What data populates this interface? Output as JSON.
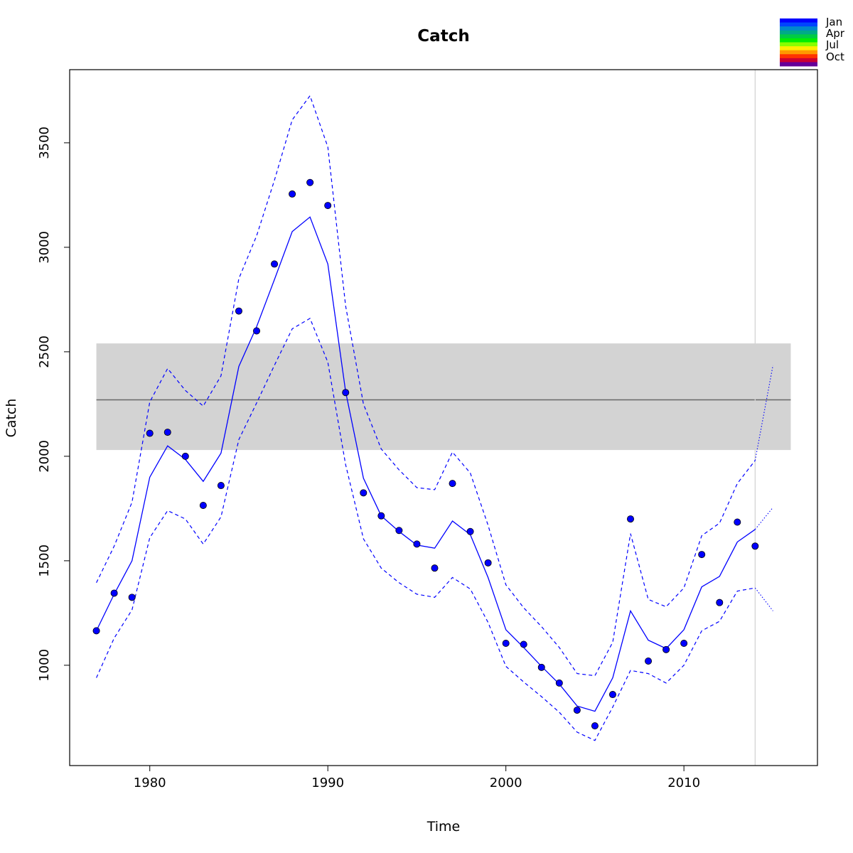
{
  "chart_data": {
    "type": "line",
    "title": "Catch",
    "xlabel": "Time",
    "ylabel": "Catch",
    "xlim": [
      1975.5,
      2017.5
    ],
    "ylim": [
      520,
      3850
    ],
    "x_ticks": [
      1980,
      1990,
      2000,
      2010
    ],
    "y_ticks": [
      1000,
      1500,
      2000,
      2500,
      3000,
      3500
    ],
    "grid": false,
    "legend_position": "top-right",
    "legend": {
      "labels": [
        "Jan",
        "Apr",
        "Jul",
        "Oct"
      ],
      "colors": [
        "#0000ff",
        "#0044ff",
        "#0088cc",
        "#00aa88",
        "#00cc44",
        "#00ee00",
        "#88ff00",
        "#ffee00",
        "#ff9900",
        "#ff3300",
        "#cc0033",
        "#660099"
      ]
    },
    "colors": {
      "fit": "#0000ff",
      "points": "#0000ff",
      "band": "#d3d3d3",
      "mean_line": "#666666",
      "vertical_marker": "#d3d3d3"
    },
    "reference_band": {
      "x_from": 1977,
      "x_to": 2016,
      "lower": 2030,
      "upper": 2540,
      "mean": 2270
    },
    "vertical_marker_x": 2014,
    "observed": {
      "x": [
        1977,
        1978,
        1979,
        1980,
        1981,
        1982,
        1983,
        1984,
        1985,
        1986,
        1987,
        1988,
        1989,
        1990,
        1991,
        1992,
        1993,
        1994,
        1995,
        1996,
        1997,
        1998,
        1999,
        2000,
        2001,
        2002,
        2003,
        2004,
        2005,
        2006,
        2007,
        2008,
        2009,
        2010,
        2011,
        2012,
        2013,
        2014
      ],
      "y": [
        1165,
        1345,
        1325,
        2110,
        2115,
        2000,
        1765,
        1860,
        2695,
        2600,
        2920,
        3255,
        3310,
        3200,
        2305,
        1825,
        1715,
        1645,
        1580,
        1465,
        1870,
        1640,
        1490,
        1105,
        1100,
        990,
        915,
        785,
        710,
        860,
        1700,
        1020,
        1075,
        1105,
        1530,
        1300,
        1685,
        1570
      ]
    },
    "fitted": {
      "x": [
        1977,
        1978,
        1979,
        1980,
        1981,
        1982,
        1983,
        1984,
        1985,
        1986,
        1987,
        1988,
        1989,
        1990,
        1991,
        1992,
        1993,
        1994,
        1995,
        1996,
        1997,
        1998,
        1999,
        2000,
        2001,
        2002,
        2003,
        2004,
        2005,
        2006,
        2007,
        2008,
        2009,
        2010,
        2011,
        2012,
        2013,
        2014
      ],
      "y": [
        1165,
        1340,
        1500,
        1900,
        2050,
        1985,
        1880,
        2015,
        2430,
        2620,
        2845,
        3075,
        3145,
        2920,
        2310,
        1895,
        1715,
        1640,
        1575,
        1560,
        1690,
        1625,
        1420,
        1170,
        1085,
        995,
        910,
        805,
        780,
        940,
        1260,
        1120,
        1080,
        1170,
        1375,
        1425,
        1590,
        1650
      ]
    },
    "upper": {
      "x": [
        1977,
        1978,
        1979,
        1980,
        1981,
        1982,
        1983,
        1984,
        1985,
        1986,
        1987,
        1988,
        1989,
        1990,
        1991,
        1992,
        1993,
        1994,
        1995,
        1996,
        1997,
        1998,
        1999,
        2000,
        2001,
        2002,
        2003,
        2004,
        2005,
        2006,
        2007,
        2008,
        2009,
        2010,
        2011,
        2012,
        2013,
        2014
      ],
      "y": [
        1395,
        1570,
        1780,
        2260,
        2420,
        2315,
        2240,
        2385,
        2850,
        3055,
        3320,
        3610,
        3725,
        3480,
        2720,
        2250,
        2035,
        1935,
        1850,
        1840,
        2020,
        1920,
        1670,
        1385,
        1275,
        1185,
        1085,
        960,
        950,
        1110,
        1630,
        1315,
        1280,
        1370,
        1620,
        1680,
        1870,
        1980
      ]
    },
    "lower": {
      "x": [
        1977,
        1978,
        1979,
        1980,
        1981,
        1982,
        1983,
        1984,
        1985,
        1986,
        1987,
        1988,
        1989,
        1990,
        1991,
        1992,
        1993,
        1994,
        1995,
        1996,
        1997,
        1998,
        1999,
        2000,
        2001,
        2002,
        2003,
        2004,
        2005,
        2006,
        2007,
        2008,
        2009,
        2010,
        2011,
        2012,
        2013,
        2014
      ],
      "y": [
        940,
        1130,
        1265,
        1610,
        1740,
        1700,
        1580,
        1710,
        2080,
        2255,
        2435,
        2610,
        2660,
        2450,
        1960,
        1605,
        1465,
        1395,
        1340,
        1325,
        1420,
        1365,
        1205,
        995,
        920,
        850,
        775,
        680,
        640,
        800,
        975,
        960,
        915,
        1000,
        1165,
        1210,
        1355,
        1370
      ]
    },
    "forecast": {
      "x": [
        2014,
        2015
      ],
      "fitted": [
        1650,
        1755
      ],
      "upper": [
        1980,
        2435
      ],
      "lower": [
        1370,
        1260
      ]
    }
  }
}
